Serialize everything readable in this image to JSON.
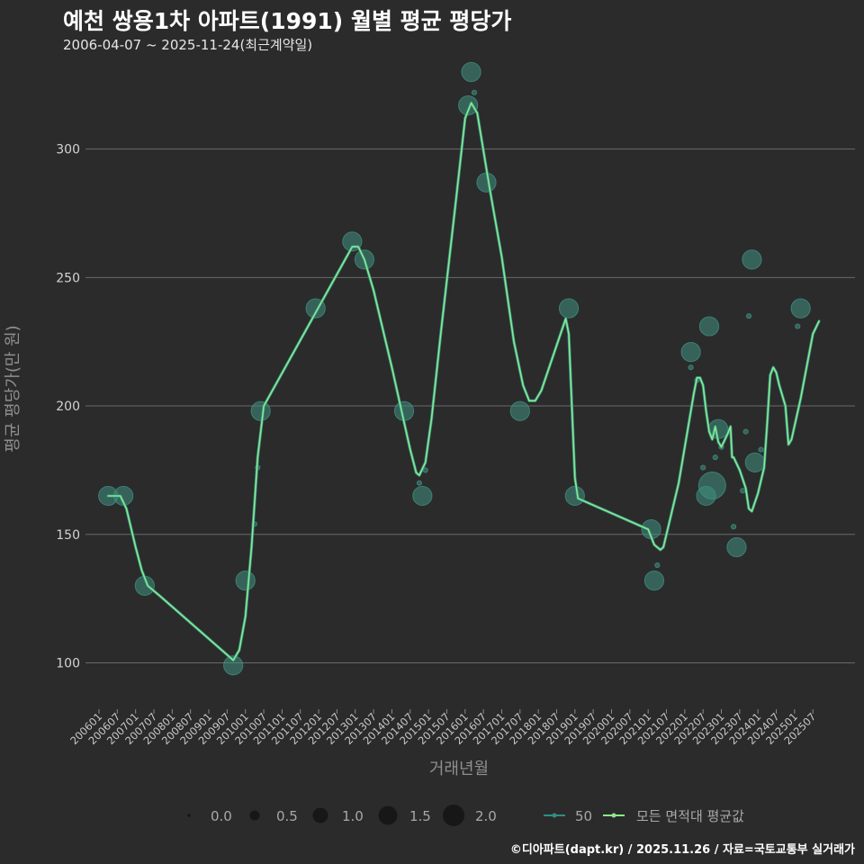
{
  "header": {
    "title": "예천 쌍용1차 아파트(1991) 월별 평균 평당가",
    "subtitle": "2006-04-07 ~ 2025-11-24(최근계약일)"
  },
  "footer": {
    "credit": "©디아파트(dapt.kr) / 2025.11.26 / 자료=국토교통부 실거래가"
  },
  "colors": {
    "background": "#2b2b2c",
    "line": "#8ee88a",
    "line_dark": "#2e8e82",
    "bubble": "#3f8f80",
    "grid": "#6a6a6a"
  },
  "chart_data": {
    "type": "line",
    "title": "예천 쌍용1차 아파트(1991) 월별 평균 평당가",
    "xlabel": "거래년월",
    "ylabel": "평균 평당가(만 원)",
    "ylim": [
      83,
      330
    ],
    "yticks": [
      100,
      150,
      200,
      250,
      300
    ],
    "xlim": [
      0,
      236
    ],
    "xticks": [
      "200601",
      "200607",
      "200701",
      "200707",
      "200801",
      "200807",
      "200901",
      "200907",
      "201001",
      "201007",
      "201101",
      "201107",
      "201201",
      "201207",
      "201301",
      "201307",
      "201401",
      "201407",
      "201501",
      "201507",
      "201601",
      "201607",
      "201701",
      "201707",
      "201801",
      "201807",
      "201901",
      "201907",
      "202001",
      "202007",
      "202101",
      "202107",
      "202201",
      "202207",
      "202301",
      "202307",
      "202401",
      "202407",
      "202501",
      "202507"
    ],
    "points_note": "x = months since 2006-01, y = average price per pyeong (만 원), size = relative trade volume",
    "points": [
      {
        "x": 3,
        "y": 165,
        "size": 1.2
      },
      {
        "x": 8,
        "y": 165,
        "size": 1.2
      },
      {
        "x": 15,
        "y": 130,
        "size": 1.2
      },
      {
        "x": 44,
        "y": 99,
        "size": 1.2
      },
      {
        "x": 48,
        "y": 132,
        "size": 1.2
      },
      {
        "x": 51,
        "y": 154,
        "size": 0.1
      },
      {
        "x": 52,
        "y": 176,
        "size": 0.1
      },
      {
        "x": 53,
        "y": 198,
        "size": 1.2
      },
      {
        "x": 71,
        "y": 238,
        "size": 1.2
      },
      {
        "x": 83,
        "y": 264,
        "size": 1.2
      },
      {
        "x": 87,
        "y": 257,
        "size": 1.2
      },
      {
        "x": 100,
        "y": 198,
        "size": 1.2
      },
      {
        "x": 105,
        "y": 170,
        "size": 0.1
      },
      {
        "x": 106,
        "y": 165,
        "size": 1.2
      },
      {
        "x": 107,
        "y": 175,
        "size": 0.1
      },
      {
        "x": 121,
        "y": 317,
        "size": 1.2
      },
      {
        "x": 122,
        "y": 330,
        "size": 1.2
      },
      {
        "x": 123,
        "y": 322,
        "size": 0.1
      },
      {
        "x": 127,
        "y": 287,
        "size": 1.2
      },
      {
        "x": 138,
        "y": 198,
        "size": 1.2
      },
      {
        "x": 154,
        "y": 238,
        "size": 1.2
      },
      {
        "x": 156,
        "y": 165,
        "size": 1.2
      },
      {
        "x": 181,
        "y": 152,
        "size": 1.2
      },
      {
        "x": 182,
        "y": 132,
        "size": 1.2
      },
      {
        "x": 183,
        "y": 138,
        "size": 0.1
      },
      {
        "x": 194,
        "y": 221,
        "size": 1.2
      },
      {
        "x": 194,
        "y": 215,
        "size": 0.1
      },
      {
        "x": 196,
        "y": 210,
        "size": 0.1
      },
      {
        "x": 198,
        "y": 176,
        "size": 0.1
      },
      {
        "x": 199,
        "y": 165,
        "size": 1.2
      },
      {
        "x": 200,
        "y": 231,
        "size": 1.2
      },
      {
        "x": 201,
        "y": 169,
        "size": 2.0
      },
      {
        "x": 202,
        "y": 180,
        "size": 0.1
      },
      {
        "x": 203,
        "y": 191,
        "size": 1.2
      },
      {
        "x": 204,
        "y": 184,
        "size": 0.1
      },
      {
        "x": 208,
        "y": 153,
        "size": 0.1
      },
      {
        "x": 209,
        "y": 145,
        "size": 1.2
      },
      {
        "x": 211,
        "y": 167,
        "size": 0.1
      },
      {
        "x": 212,
        "y": 190,
        "size": 0.1
      },
      {
        "x": 213,
        "y": 235,
        "size": 0.1
      },
      {
        "x": 214,
        "y": 257,
        "size": 1.2
      },
      {
        "x": 215,
        "y": 178,
        "size": 1.2
      },
      {
        "x": 217,
        "y": 183,
        "size": 0.1
      },
      {
        "x": 229,
        "y": 231,
        "size": 0.1
      },
      {
        "x": 230,
        "y": 238,
        "size": 1.2
      }
    ],
    "series": [
      {
        "name": "50",
        "values": [
          [
            3,
            165
          ],
          [
            7,
            165
          ],
          [
            9,
            160
          ],
          [
            12,
            145
          ],
          [
            14,
            136
          ],
          [
            16,
            130
          ],
          [
            20,
            126
          ],
          [
            44,
            101
          ],
          [
            46,
            105
          ],
          [
            48,
            118
          ],
          [
            50,
            145
          ],
          [
            52,
            180
          ],
          [
            54,
            200
          ],
          [
            83,
            262
          ],
          [
            85,
            262
          ],
          [
            87,
            257
          ],
          [
            90,
            245
          ],
          [
            96,
            215
          ],
          [
            102,
            183
          ],
          [
            104,
            174
          ],
          [
            105,
            173
          ],
          [
            107,
            178
          ],
          [
            109,
            195
          ],
          [
            112,
            228
          ],
          [
            117,
            280
          ],
          [
            120,
            312
          ],
          [
            122,
            318
          ],
          [
            124,
            314
          ],
          [
            128,
            285
          ],
          [
            132,
            258
          ],
          [
            136,
            225
          ],
          [
            139,
            208
          ],
          [
            141,
            202
          ],
          [
            143,
            202
          ],
          [
            145,
            206
          ],
          [
            153,
            234
          ],
          [
            154,
            228
          ],
          [
            155,
            200
          ],
          [
            156,
            172
          ],
          [
            157,
            164
          ],
          [
            180,
            152
          ],
          [
            182,
            146
          ],
          [
            184,
            144
          ],
          [
            185,
            145
          ],
          [
            187,
            155
          ],
          [
            190,
            170
          ],
          [
            195,
            205
          ],
          [
            196,
            211
          ],
          [
            197,
            211
          ],
          [
            198,
            208
          ],
          [
            199,
            198
          ],
          [
            200,
            190
          ],
          [
            201,
            187
          ],
          [
            202,
            192
          ],
          [
            203,
            186
          ],
          [
            204,
            184
          ],
          [
            206,
            189
          ],
          [
            207,
            192
          ],
          [
            207.5,
            180
          ],
          [
            208,
            180
          ],
          [
            210,
            175
          ],
          [
            212,
            168
          ],
          [
            213,
            160
          ],
          [
            214,
            159
          ],
          [
            216,
            166
          ],
          [
            218,
            176
          ],
          [
            219,
            193
          ],
          [
            220,
            212
          ],
          [
            221,
            215
          ],
          [
            222,
            213
          ],
          [
            223,
            208
          ],
          [
            225,
            200
          ],
          [
            226,
            185
          ],
          [
            227,
            187
          ],
          [
            230,
            203
          ],
          [
            234,
            228
          ],
          [
            236,
            233
          ]
        ]
      },
      {
        "name": "모든 면적대 평균값",
        "values": [
          [
            3,
            165
          ],
          [
            7,
            165
          ],
          [
            9,
            160
          ],
          [
            12,
            145
          ],
          [
            14,
            136
          ],
          [
            16,
            130
          ],
          [
            20,
            126
          ],
          [
            44,
            101
          ],
          [
            46,
            105
          ],
          [
            48,
            118
          ],
          [
            50,
            145
          ],
          [
            52,
            180
          ],
          [
            54,
            200
          ],
          [
            83,
            262
          ],
          [
            85,
            262
          ],
          [
            87,
            257
          ],
          [
            90,
            245
          ],
          [
            96,
            215
          ],
          [
            102,
            183
          ],
          [
            104,
            174
          ],
          [
            105,
            173
          ],
          [
            107,
            178
          ],
          [
            109,
            195
          ],
          [
            112,
            228
          ],
          [
            117,
            280
          ],
          [
            120,
            312
          ],
          [
            122,
            318
          ],
          [
            124,
            314
          ],
          [
            128,
            285
          ],
          [
            132,
            258
          ],
          [
            136,
            225
          ],
          [
            139,
            208
          ],
          [
            141,
            202
          ],
          [
            143,
            202
          ],
          [
            145,
            206
          ],
          [
            153,
            234
          ],
          [
            154,
            228
          ],
          [
            155,
            200
          ],
          [
            156,
            172
          ],
          [
            157,
            164
          ],
          [
            180,
            152
          ],
          [
            182,
            146
          ],
          [
            184,
            144
          ],
          [
            185,
            145
          ],
          [
            187,
            155
          ],
          [
            190,
            170
          ],
          [
            195,
            205
          ],
          [
            196,
            211
          ],
          [
            197,
            211
          ],
          [
            198,
            208
          ],
          [
            199,
            198
          ],
          [
            200,
            190
          ],
          [
            201,
            187
          ],
          [
            202,
            192
          ],
          [
            203,
            186
          ],
          [
            204,
            184
          ],
          [
            206,
            189
          ],
          [
            207,
            192
          ],
          [
            207.5,
            180
          ],
          [
            208,
            180
          ],
          [
            210,
            175
          ],
          [
            212,
            168
          ],
          [
            213,
            160
          ],
          [
            214,
            159
          ],
          [
            216,
            166
          ],
          [
            218,
            176
          ],
          [
            219,
            193
          ],
          [
            220,
            212
          ],
          [
            221,
            215
          ],
          [
            222,
            213
          ],
          [
            223,
            208
          ],
          [
            225,
            200
          ],
          [
            226,
            185
          ],
          [
            227,
            187
          ],
          [
            230,
            203
          ],
          [
            234,
            228
          ],
          [
            236,
            233
          ]
        ]
      }
    ],
    "legend": {
      "size_values": [
        "0.0",
        "0.5",
        "1.0",
        "1.5",
        "2.0"
      ],
      "line_labels": [
        "50",
        "모든 면적대 평균값"
      ],
      "position": "bottom"
    }
  }
}
